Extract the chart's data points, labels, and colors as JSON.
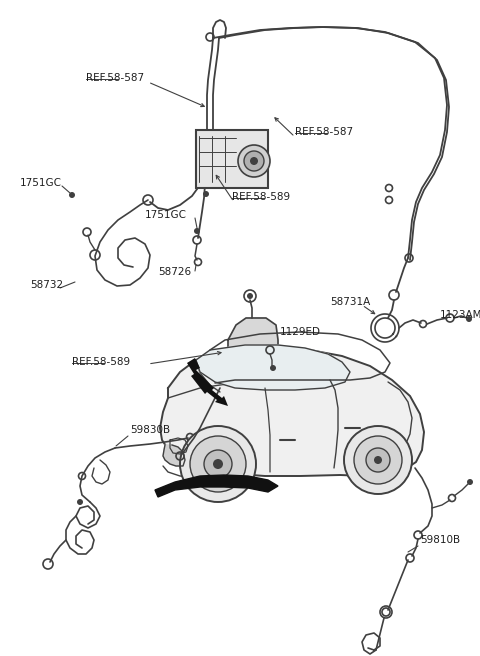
{
  "bg_color": "#ffffff",
  "line_color": "#404040",
  "text_color": "#202020",
  "figsize": [
    4.8,
    6.56
  ],
  "dpi": 100,
  "labels": {
    "ref58587_top": "REF.58-587",
    "ref58587_right": "REF.58-587",
    "ref58589_abs": "REF.58-589",
    "ref58589_bracket": "REF.58-589",
    "lbl_1751GC_left": "1751GC",
    "lbl_1751GC_mid": "1751GC",
    "lbl_58732": "58732",
    "lbl_58726": "58726",
    "lbl_58731A": "58731A",
    "lbl_1123AM": "1123AM",
    "lbl_1129ED": "1129ED",
    "lbl_59830B": "59830B",
    "lbl_59810B": "59810B"
  }
}
